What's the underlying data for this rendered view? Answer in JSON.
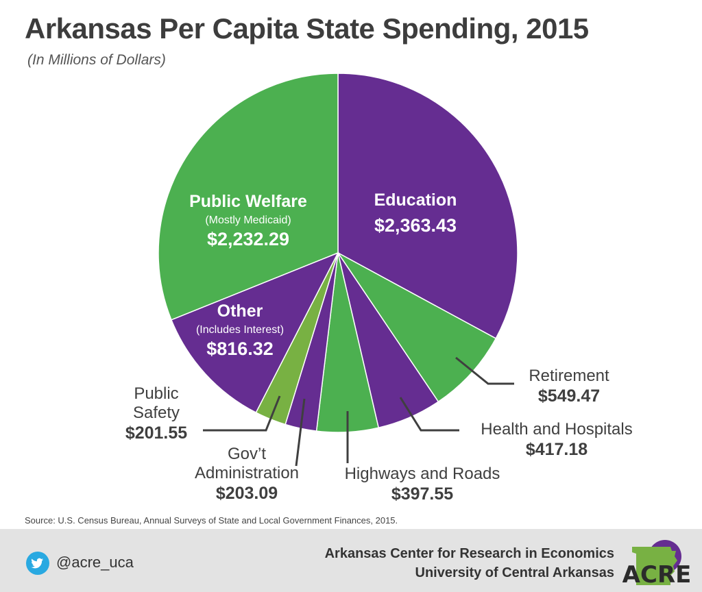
{
  "header": {
    "title": "Arkansas Per Capita State Spending, 2015",
    "subtitle": "(In Millions of Dollars)"
  },
  "chart_data": {
    "type": "pie",
    "title": "Arkansas Per Capita State Spending, 2015",
    "subtitle": "(In Millions of Dollars)",
    "slices": [
      {
        "label": "Education",
        "note": "",
        "value": 2363.43,
        "value_label": "$2,363.43",
        "color": "#652d91"
      },
      {
        "label": "Retirement",
        "note": "",
        "value": 549.47,
        "value_label": "$549.47",
        "color": "#4cb050"
      },
      {
        "label": "Health and Hospitals",
        "note": "",
        "value": 417.18,
        "value_label": "$417.18",
        "color": "#652d91"
      },
      {
        "label": "Highways and Roads",
        "note": "",
        "value": 397.55,
        "value_label": "$397.55",
        "color": "#4cb050"
      },
      {
        "label": "Gov’t Administration",
        "note": "",
        "value": 203.09,
        "value_label": "$203.09",
        "color": "#652d91"
      },
      {
        "label": "Public Safety",
        "note": "",
        "value": 201.55,
        "value_label": "$201.55",
        "color": "#78b143"
      },
      {
        "label": "Other",
        "note": "(Includes Interest)",
        "value": 816.32,
        "value_label": "$816.32",
        "color": "#652d91"
      },
      {
        "label": "Public Welfare",
        "note": "(Mostly Medicaid)",
        "value": 2232.29,
        "value_label": "$2,232.29",
        "color": "#4cb050"
      }
    ],
    "legend": "none"
  },
  "source": "Source: U.S. Census Bureau, Annual Surveys of State and Local Government Finances, 2015.",
  "footer": {
    "twitter_handle": "@acre_uca",
    "org_line1": "Arkansas Center for Research in Economics",
    "org_line2": "University of Central Arkansas",
    "logo_text": "ACRE",
    "icons": [
      "twitter-icon",
      "acre-logo"
    ]
  }
}
